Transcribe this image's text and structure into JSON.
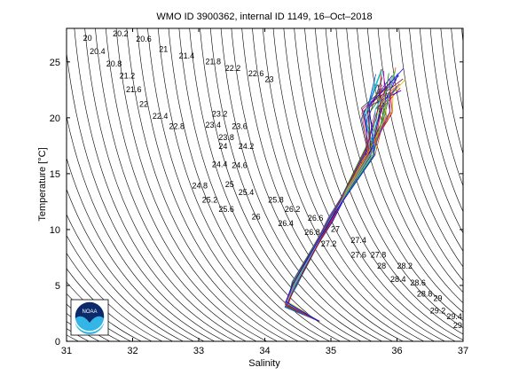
{
  "chart_data": {
    "type": "line",
    "title": "WMO ID 3900362, internal ID 1149, 16–Oct–2018",
    "xlabel": "Salinity",
    "ylabel": "Temperature [°C]",
    "xlim": [
      31,
      37
    ],
    "ylim": [
      0,
      28
    ],
    "xticks": [
      "31",
      "32",
      "33",
      "34",
      "35",
      "36",
      "37"
    ],
    "yticks": [
      "0",
      "5",
      "10",
      "15",
      "20",
      "25"
    ],
    "grid": false,
    "density_labels": [
      "20",
      "20.2",
      "20.4",
      "20.6",
      "20.8",
      "21",
      "21.2",
      "21.4",
      "21.6",
      "21.8",
      "22",
      "22.2",
      "22.4",
      "22.6",
      "22.8",
      "23",
      "23.2",
      "23.4",
      "23.6",
      "23.8",
      "24",
      "24.2",
      "24.4",
      "24.6",
      "24.8",
      "25",
      "25.2",
      "25.4",
      "25.6",
      "25.8",
      "26",
      "26.2",
      "26.4",
      "26.6",
      "26.8",
      "27",
      "27.2",
      "27.4",
      "27.6",
      "27.8",
      "28",
      "28.2",
      "28.4",
      "28.6",
      "28.8",
      "29",
      "29.2",
      "29.4",
      "29"
    ],
    "series_colors": [
      "#0000ff",
      "#008000",
      "#ff0000",
      "#00bfbf",
      "#bf00bf",
      "#bfbf00",
      "#404040",
      "#1f4fbf",
      "#d95319",
      "#7e2f8e",
      "#77ac30",
      "#4dbeee",
      "#a2142f"
    ],
    "profile_summary": {
      "profile_count": 40,
      "deep_point": {
        "S": 34.82,
        "T": 1.8
      },
      "min_S_point": {
        "S": 34.33,
        "T": 3.3
      },
      "mid_point": {
        "S": 35.0,
        "T": 11.0
      },
      "upper_point": {
        "S": 35.6,
        "T": 17.0
      },
      "surface_range_S": [
        35.4,
        36.3
      ],
      "surface_range_T": [
        19.0,
        25.8
      ]
    }
  },
  "logo": {
    "text": "NOAA",
    "colors": {
      "navy": "#0a2a6b",
      "sky": "#33b5e5"
    }
  }
}
